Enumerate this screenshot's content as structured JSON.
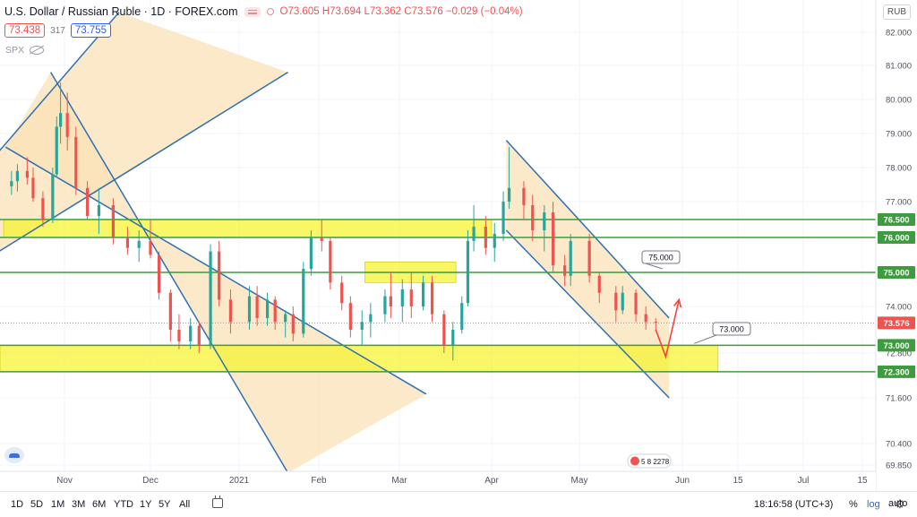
{
  "header": {
    "symbol_title": "U.S. Dollar / Russian Ruble · 1D · FOREX.com",
    "ohlc": "O73.605 H73.694 L73.362 C73.576 −0.029 (−0.04%)",
    "sell_price": "73.438",
    "spread": "317",
    "buy_price": "73.755",
    "compare_symbol": "SPX",
    "currency_label": "RUB"
  },
  "colors": {
    "up": "#26a69a",
    "down": "#ef5350",
    "zone_yellow": "#f7f22e",
    "channel_fill": "#fbe1b7",
    "channel_line": "#2f6fb2",
    "level_green": "#3d9c3d",
    "forecast_path": "#f44336"
  },
  "chart_data": {
    "type": "candlestick",
    "title": "U.S. Dollar / Russian Ruble · 1D · FOREX.com",
    "ylim": [
      69.65,
      82.55
    ],
    "yticks": [
      82.0,
      81.0,
      80.0,
      79.0,
      78.0,
      77.0,
      76.0,
      75.0,
      74.0,
      72.8,
      71.6,
      70.4,
      69.85
    ],
    "ytick_labels": [
      "82.000",
      "81.000",
      "80.000",
      "79.000",
      "78.000",
      "77.000",
      "76.000",
      "75.000",
      "74.000",
      "72.800",
      "71.600",
      "70.400",
      "69.850"
    ],
    "x_axis_labels": [
      "Nov",
      "Dec",
      "2021",
      "Feb",
      "Mar",
      "Apr",
      "May",
      "Jun",
      "15",
      "Jul",
      "15"
    ],
    "x_axis_dates": [
      "2020-11-01",
      "2020-12-01",
      "2021-01-01",
      "2021-02-01",
      "2021-03-01",
      "2021-04-01",
      "2021-05-01",
      "2021-06-01",
      "2021-06-15",
      "2021-07-01",
      "2021-07-15"
    ],
    "ohlc_series": [
      [
        "2020-10-05",
        77.45,
        77.9,
        77.2,
        77.6
      ],
      [
        "2020-10-08",
        77.6,
        78.1,
        77.3,
        77.9
      ],
      [
        "2020-10-13",
        77.9,
        78.3,
        77.5,
        77.7
      ],
      [
        "2020-10-16",
        77.7,
        78.0,
        77.0,
        77.1
      ],
      [
        "2020-10-21",
        77.1,
        77.3,
        76.3,
        76.5
      ],
      [
        "2020-10-26",
        76.5,
        78.0,
        76.4,
        77.8
      ],
      [
        "2020-10-28",
        77.8,
        79.5,
        77.7,
        79.2
      ],
      [
        "2020-10-30",
        79.2,
        80.5,
        78.7,
        79.6
      ],
      [
        "2020-11-02",
        79.6,
        80.2,
        78.5,
        78.9
      ],
      [
        "2020-11-05",
        78.9,
        79.2,
        77.2,
        77.4
      ],
      [
        "2020-11-09",
        77.4,
        77.6,
        76.5,
        76.6
      ],
      [
        "2020-11-13",
        76.6,
        77.4,
        76.1,
        76.9
      ],
      [
        "2020-11-18",
        76.9,
        77.1,
        75.8,
        76.0
      ],
      [
        "2020-11-23",
        76.0,
        76.3,
        75.5,
        75.7
      ],
      [
        "2020-11-27",
        75.7,
        76.2,
        75.3,
        75.9
      ],
      [
        "2020-12-01",
        75.9,
        76.5,
        75.4,
        75.5
      ],
      [
        "2020-12-04",
        75.5,
        75.6,
        74.2,
        74.4
      ],
      [
        "2020-12-08",
        74.4,
        74.5,
        73.1,
        73.4
      ],
      [
        "2020-12-11",
        73.4,
        73.8,
        72.9,
        73.1
      ],
      [
        "2020-12-15",
        73.1,
        73.7,
        72.9,
        73.5
      ],
      [
        "2020-12-18",
        73.5,
        73.6,
        72.8,
        73.0
      ],
      [
        "2020-12-22",
        73.0,
        75.8,
        72.9,
        75.6
      ],
      [
        "2020-12-25",
        75.6,
        75.9,
        74.0,
        74.2
      ],
      [
        "2020-12-29",
        74.2,
        74.5,
        73.3,
        73.6
      ],
      [
        "2021-01-05",
        73.6,
        74.6,
        73.4,
        74.3
      ],
      [
        "2021-01-08",
        74.3,
        74.6,
        73.5,
        73.7
      ],
      [
        "2021-01-12",
        73.7,
        74.4,
        73.5,
        74.2
      ],
      [
        "2021-01-15",
        74.2,
        74.3,
        73.4,
        73.6
      ],
      [
        "2021-01-19",
        73.6,
        73.9,
        73.2,
        73.8
      ],
      [
        "2021-01-22",
        73.8,
        74.0,
        73.1,
        73.3
      ],
      [
        "2021-01-26",
        73.3,
        75.3,
        73.2,
        75.1
      ],
      [
        "2021-01-29",
        75.1,
        76.2,
        74.9,
        76.0
      ],
      [
        "2021-02-02",
        76.0,
        76.5,
        75.6,
        75.9
      ],
      [
        "2021-02-05",
        75.9,
        76.0,
        74.5,
        74.7
      ],
      [
        "2021-02-09",
        74.7,
        74.9,
        73.9,
        74.1
      ],
      [
        "2021-02-12",
        74.1,
        74.3,
        73.2,
        73.4
      ],
      [
        "2021-02-16",
        73.4,
        73.9,
        73.0,
        73.6
      ],
      [
        "2021-02-19",
        73.6,
        74.1,
        73.2,
        73.8
      ],
      [
        "2021-02-24",
        73.8,
        74.5,
        73.6,
        74.3
      ],
      [
        "2021-02-26",
        74.3,
        75.0,
        73.7,
        74.0
      ],
      [
        "2021-03-02",
        74.0,
        74.8,
        73.6,
        74.5
      ],
      [
        "2021-03-05",
        74.5,
        75.0,
        73.7,
        74.0
      ],
      [
        "2021-03-09",
        74.0,
        74.9,
        73.9,
        74.7
      ],
      [
        "2021-03-12",
        74.7,
        74.9,
        73.6,
        73.8
      ],
      [
        "2021-03-16",
        73.8,
        73.9,
        72.8,
        73.0
      ],
      [
        "2021-03-19",
        73.0,
        73.6,
        72.6,
        73.4
      ],
      [
        "2021-03-22",
        73.4,
        74.3,
        73.3,
        74.1
      ],
      [
        "2021-03-24",
        74.1,
        76.2,
        74.0,
        75.9
      ],
      [
        "2021-03-26",
        75.9,
        76.9,
        75.6,
        76.3
      ],
      [
        "2021-03-30",
        76.3,
        76.6,
        75.5,
        75.7
      ],
      [
        "2021-04-02",
        75.7,
        76.4,
        75.3,
        76.1
      ],
      [
        "2021-04-05",
        76.1,
        77.3,
        75.9,
        77.0
      ],
      [
        "2021-04-07",
        77.0,
        78.6,
        76.8,
        77.4
      ],
      [
        "2021-04-12",
        77.4,
        77.6,
        76.5,
        76.9
      ],
      [
        "2021-04-15",
        76.9,
        77.2,
        75.9,
        76.2
      ],
      [
        "2021-04-19",
        76.2,
        76.9,
        75.6,
        76.7
      ],
      [
        "2021-04-22",
        76.7,
        77.0,
        75.0,
        75.2
      ],
      [
        "2021-04-26",
        75.2,
        75.5,
        74.6,
        74.9
      ],
      [
        "2021-04-28",
        74.9,
        76.1,
        74.6,
        75.9
      ],
      [
        "2021-05-04",
        75.9,
        76.1,
        74.7,
        74.9
      ],
      [
        "2021-05-07",
        74.9,
        75.0,
        74.1,
        74.4
      ],
      [
        "2021-05-12",
        74.4,
        74.6,
        73.6,
        73.9
      ],
      [
        "2021-05-14",
        73.9,
        74.6,
        73.8,
        74.4
      ],
      [
        "2021-05-18",
        74.4,
        74.5,
        73.6,
        73.8
      ],
      [
        "2021-05-21",
        73.8,
        74.0,
        73.4,
        73.6
      ],
      [
        "2021-05-24",
        73.605,
        73.694,
        73.362,
        73.576
      ]
    ],
    "horizontal_levels": [
      {
        "price": 76.5,
        "label": "76.500"
      },
      {
        "price": 76.0,
        "label": "76.000"
      },
      {
        "price": 75.0,
        "label": "75.000"
      },
      {
        "price": 73.0,
        "label": "73.000"
      },
      {
        "price": 72.3,
        "label": "72.300"
      }
    ],
    "current_price": {
      "price": 73.576,
      "label": "73.576"
    },
    "callouts": [
      {
        "label": "75.000",
        "price": 75.0
      },
      {
        "label": "73.000",
        "price": 73.0
      }
    ],
    "highlight_zones": [
      {
        "from": "2020-10-01",
        "to": "2021-04-01",
        "low": 76.0,
        "high": 76.5
      },
      {
        "from": "2021-02-17",
        "to": "2021-03-20",
        "low": 74.7,
        "high": 75.3
      },
      {
        "from": "2020-09-20",
        "to": "2021-06-10",
        "low": 72.3,
        "high": 73.0
      }
    ],
    "trend_channels": [
      {
        "from": [
          "2020-10-25",
          80.8
        ],
        "to": [
          "2021-01-20",
          69.65
        ],
        "parallel_from": [
          "2020-10-02",
          78.6
        ],
        "parallel_to": [
          "2021-03-10",
          71.7
        ]
      },
      {
        "from": [
          "2020-09-20",
          75.3
        ],
        "to": [
          "2021-01-20",
          80.8
        ],
        "parallel_from": [
          "2020-09-20",
          77.9
        ],
        "parallel_to": [
          "2020-11-20",
          82.6
        ]
      },
      {
        "from": [
          "2021-04-06",
          78.8
        ],
        "to": [
          "2021-05-28",
          73.7
        ],
        "parallel_from": [
          "2021-04-06",
          76.2
        ],
        "parallel_to": [
          "2021-05-28",
          71.6
        ]
      }
    ],
    "forecast_path": [
      [
        "2021-05-24",
        73.4
      ],
      [
        "2021-05-27",
        72.7
      ],
      [
        "2021-05-31",
        74.2
      ]
    ],
    "time_axis_labels": [
      "1D",
      "5D",
      "1M",
      "3M",
      "6M",
      "YTD",
      "1Y",
      "5Y",
      "All"
    ],
    "earnings_badge": "5 8 2278"
  },
  "bottombar": {
    "timeframes": [
      "1D",
      "5D",
      "1M",
      "3M",
      "6M",
      "YTD",
      "1Y",
      "5Y",
      "All"
    ],
    "clock": "18:16:58 (UTC+3)",
    "percent": "%",
    "log": "log",
    "auto": "auto"
  }
}
